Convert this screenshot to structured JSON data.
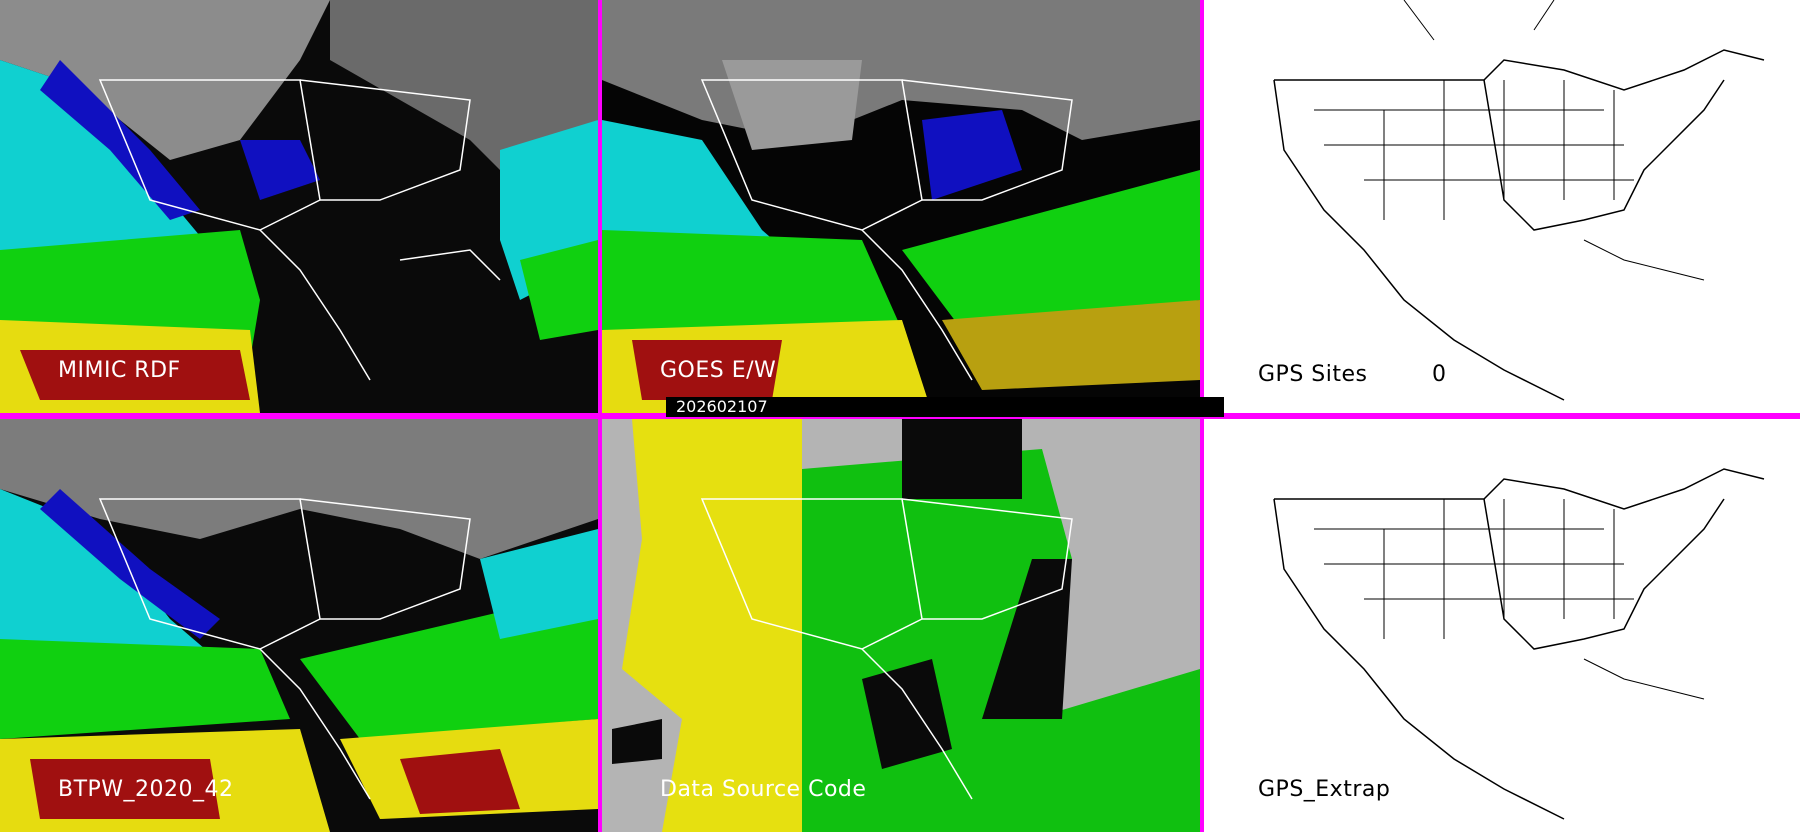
{
  "panels": [
    {
      "id": "p1",
      "label": "MIMIC RDF",
      "theme": "dark"
    },
    {
      "id": "p2",
      "label": "GOES E/W",
      "theme": "dark"
    },
    {
      "id": "p3",
      "label": "GPS Sites",
      "count": "0",
      "theme": "light"
    },
    {
      "id": "p4",
      "label": "BTPW_2020_42",
      "theme": "dark"
    },
    {
      "id": "p5",
      "label": "Data Source Code",
      "theme": "dark"
    },
    {
      "id": "p6",
      "label": "GPS_Extrap",
      "theme": "light"
    }
  ],
  "timestamp": "202602107",
  "colors": {
    "divider": "#ff00ff",
    "tpw_high": "#a01010",
    "tpw_mid_high": "#e6dc10",
    "tpw_mid": "#10d010",
    "tpw_low": "#10e0e0",
    "tpw_lowest": "#1010c0",
    "land_gray": "#8c8c8c",
    "source_yellow": "#e6e010",
    "source_green": "#10c010",
    "source_gray": "#b4b4b4"
  }
}
